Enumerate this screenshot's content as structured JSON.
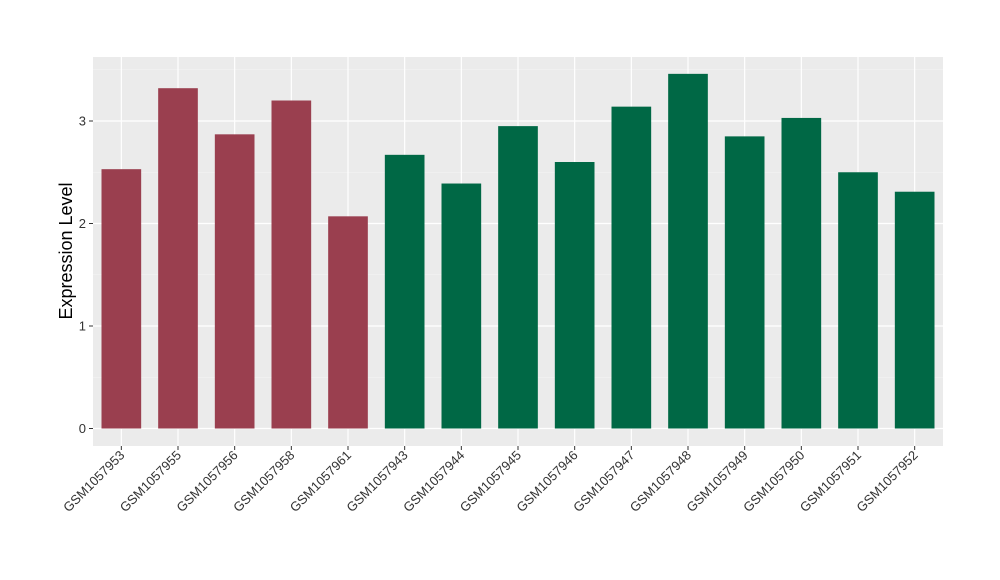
{
  "chart_data": {
    "type": "bar",
    "title": "",
    "xlabel": "",
    "ylabel": "Expression Level",
    "ylim": [
      0,
      3.6
    ],
    "yticks": [
      0,
      1,
      2,
      3
    ],
    "grid": true,
    "categories": [
      "GSM1057953",
      "GSM1057955",
      "GSM1057956",
      "GSM1057958",
      "GSM1057961",
      "GSM1057943",
      "GSM1057944",
      "GSM1057945",
      "GSM1057946",
      "GSM1057947",
      "GSM1057948",
      "GSM1057949",
      "GSM1057950",
      "GSM1057951",
      "GSM1057952"
    ],
    "values": [
      2.53,
      3.32,
      2.87,
      3.2,
      2.07,
      2.67,
      2.39,
      2.95,
      2.6,
      3.14,
      3.46,
      2.85,
      3.03,
      2.5,
      2.31
    ],
    "groups": [
      0,
      0,
      0,
      0,
      0,
      1,
      1,
      1,
      1,
      1,
      1,
      1,
      1,
      1,
      1
    ],
    "colors": {
      "group_a": "#9a3f4f",
      "group_b": "#006845",
      "panel": "#ebebeb",
      "grid_major": "#ffffff",
      "grid_minor": "#f5f5f5"
    }
  }
}
